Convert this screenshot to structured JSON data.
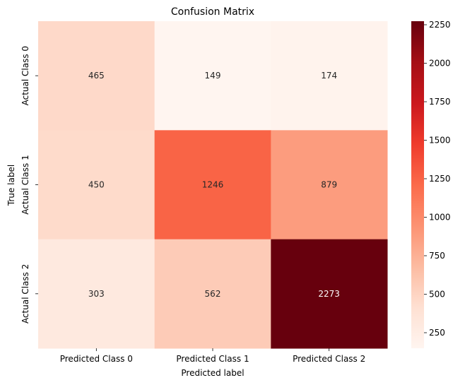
{
  "chart_data": {
    "type": "heatmap",
    "title": "Confusion Matrix",
    "xlabel": "Predicted label",
    "ylabel": "True label",
    "x_categories": [
      "Predicted Class 0",
      "Predicted Class 1",
      "Predicted Class 2"
    ],
    "y_categories": [
      "Actual Class 0",
      "Actual Class 1",
      "Actual Class 2"
    ],
    "values": [
      [
        465,
        149,
        174
      ],
      [
        450,
        1246,
        879
      ],
      [
        303,
        562,
        2273
      ]
    ],
    "colormap": "Reds",
    "colorbar": {
      "min": 149,
      "max": 2273,
      "ticks": [
        250,
        500,
        750,
        1000,
        1250,
        1500,
        1750,
        2000,
        2250
      ]
    }
  }
}
